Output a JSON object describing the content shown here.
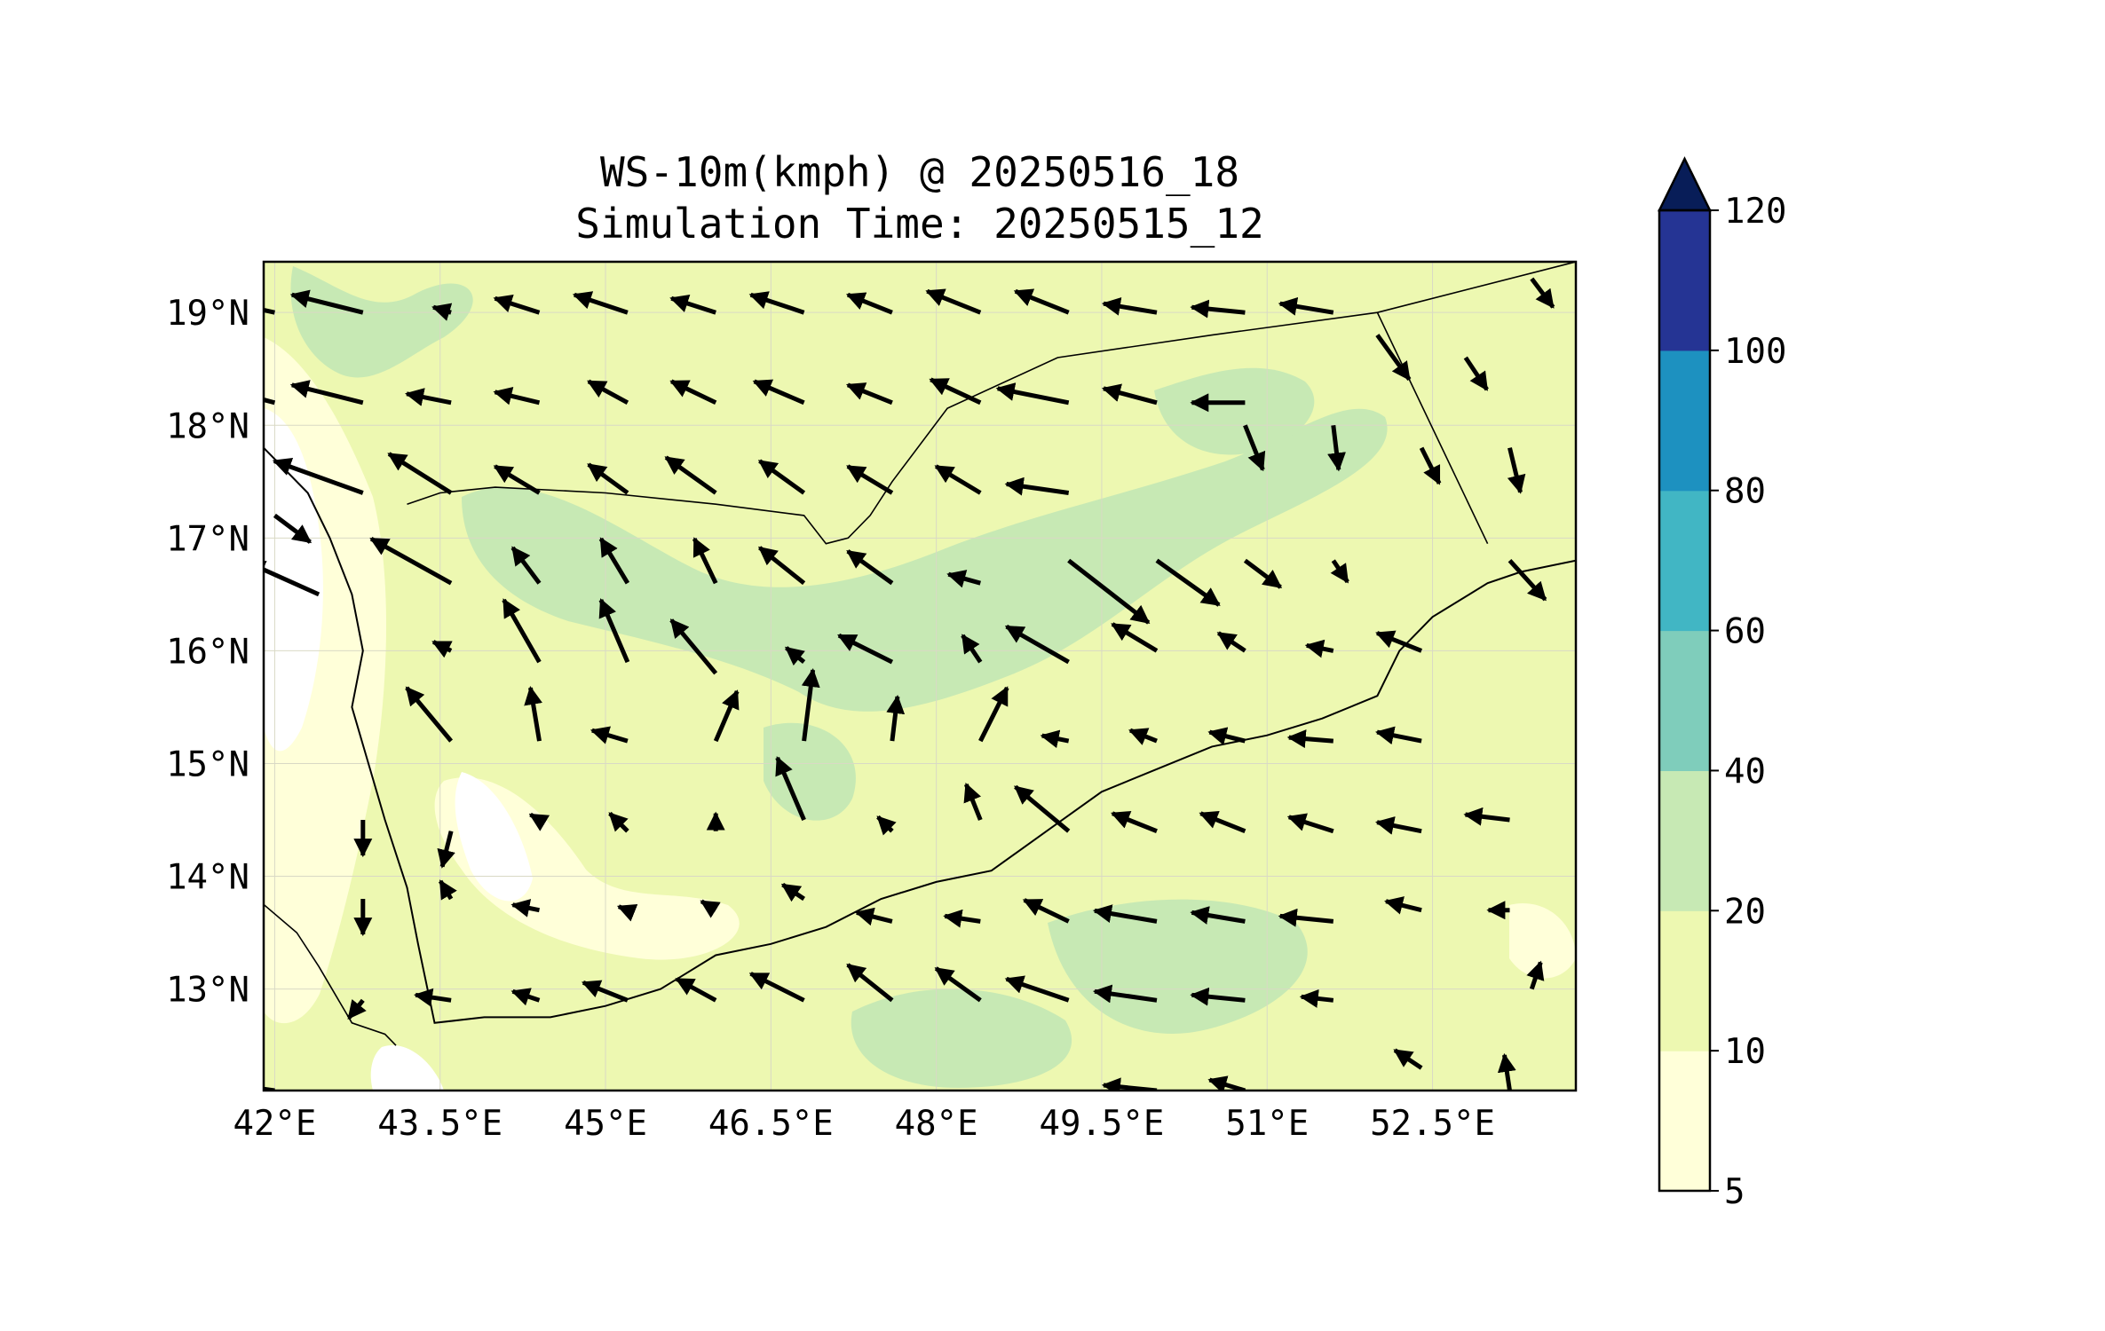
{
  "title": {
    "line1": "WS-10m(kmph) @ 20250516_18",
    "line2": "Simulation Time: 20250515_12"
  },
  "map": {
    "lon_range": [
      41.9,
      53.8
    ],
    "lat_range": [
      12.1,
      19.45
    ],
    "lon_ticks": [
      {
        "value": 42.0,
        "label": "42°E"
      },
      {
        "value": 43.5,
        "label": "43.5°E"
      },
      {
        "value": 45.0,
        "label": "45°E"
      },
      {
        "value": 46.5,
        "label": "46.5°E"
      },
      {
        "value": 48.0,
        "label": "48°E"
      },
      {
        "value": 49.5,
        "label": "49.5°E"
      },
      {
        "value": 51.0,
        "label": "51°E"
      },
      {
        "value": 52.5,
        "label": "52.5°E"
      }
    ],
    "lat_ticks": [
      {
        "value": 19,
        "label": "19°N"
      },
      {
        "value": 18,
        "label": "18°N"
      },
      {
        "value": 17,
        "label": "17°N"
      },
      {
        "value": 16,
        "label": "16°N"
      },
      {
        "value": 15,
        "label": "15°N"
      },
      {
        "value": 14,
        "label": "14°N"
      },
      {
        "value": 13,
        "label": "13°N"
      }
    ],
    "grid": true,
    "coastline": [
      [
        41.9,
        17.8
      ],
      [
        42.3,
        17.4
      ],
      [
        42.5,
        17.0
      ],
      [
        42.7,
        16.5
      ],
      [
        42.8,
        16.0
      ],
      [
        42.7,
        15.5
      ],
      [
        42.85,
        15.0
      ],
      [
        43.0,
        14.5
      ],
      [
        43.2,
        13.9
      ],
      [
        43.3,
        13.4
      ],
      [
        43.45,
        12.7
      ],
      [
        43.9,
        12.75
      ],
      [
        44.5,
        12.75
      ],
      [
        45.0,
        12.85
      ],
      [
        45.5,
        13.0
      ],
      [
        46.0,
        13.3
      ],
      [
        46.5,
        13.4
      ],
      [
        47.0,
        13.55
      ],
      [
        47.5,
        13.8
      ],
      [
        48.0,
        13.95
      ],
      [
        48.5,
        14.05
      ],
      [
        49.0,
        14.4
      ],
      [
        49.5,
        14.75
      ],
      [
        50.0,
        14.95
      ],
      [
        50.5,
        15.15
      ],
      [
        51.0,
        15.25
      ],
      [
        51.5,
        15.4
      ],
      [
        52.0,
        15.6
      ],
      [
        52.2,
        16.0
      ],
      [
        52.5,
        16.3
      ],
      [
        53.0,
        16.6
      ],
      [
        53.3,
        16.7
      ],
      [
        53.8,
        16.8
      ]
    ],
    "borders": [
      [
        [
          43.2,
          17.3
        ],
        [
          43.5,
          17.4
        ],
        [
          44.0,
          17.45
        ],
        [
          45.0,
          17.4
        ],
        [
          46.0,
          17.3
        ],
        [
          46.8,
          17.2
        ],
        [
          47.0,
          16.95
        ],
        [
          47.2,
          17.0
        ],
        [
          47.4,
          17.2
        ],
        [
          47.6,
          17.5
        ],
        [
          48.1,
          18.15
        ],
        [
          49.1,
          18.6
        ],
        [
          50.5,
          18.8
        ],
        [
          52.0,
          19.0
        ],
        [
          53.8,
          19.45
        ]
      ],
      [
        [
          52.0,
          19.0
        ],
        [
          53.0,
          16.95
        ]
      ],
      [
        [
          41.9,
          13.75
        ],
        [
          42.2,
          13.5
        ],
        [
          42.4,
          13.2
        ],
        [
          42.7,
          12.7
        ],
        [
          43.0,
          12.6
        ],
        [
          43.1,
          12.5
        ]
      ]
    ],
    "wind_vectors": [
      {
        "lon": 42.0,
        "lat": 19.0,
        "u": -4.5,
        "v": 1.0
      },
      {
        "lon": 42.8,
        "lat": 19.0,
        "u": -4.0,
        "v": 1.0
      },
      {
        "lon": 43.6,
        "lat": 19.0,
        "u": -1.0,
        "v": 0.3
      },
      {
        "lon": 44.4,
        "lat": 19.0,
        "u": -2.5,
        "v": 0.8
      },
      {
        "lon": 45.2,
        "lat": 19.0,
        "u": -3.0,
        "v": 1.0
      },
      {
        "lon": 46.0,
        "lat": 19.0,
        "u": -2.5,
        "v": 0.8
      },
      {
        "lon": 46.8,
        "lat": 19.0,
        "u": -3.0,
        "v": 1.0
      },
      {
        "lon": 47.6,
        "lat": 19.0,
        "u": -2.5,
        "v": 1.0
      },
      {
        "lon": 48.4,
        "lat": 19.0,
        "u": -3.0,
        "v": 1.2
      },
      {
        "lon": 49.2,
        "lat": 19.0,
        "u": -3.0,
        "v": 1.2
      },
      {
        "lon": 50.0,
        "lat": 19.0,
        "u": -3.0,
        "v": 0.5
      },
      {
        "lon": 50.8,
        "lat": 19.0,
        "u": -3.0,
        "v": 0.3
      },
      {
        "lon": 51.6,
        "lat": 19.0,
        "u": -3.0,
        "v": 0.5
      },
      {
        "lon": 53.4,
        "lat": 19.3,
        "u": 1.2,
        "v": -1.6
      },
      {
        "lon": 42.0,
        "lat": 18.2,
        "u": -4.5,
        "v": 1.2
      },
      {
        "lon": 42.8,
        "lat": 18.2,
        "u": -4.0,
        "v": 1.0
      },
      {
        "lon": 43.6,
        "lat": 18.2,
        "u": -2.5,
        "v": 0.5
      },
      {
        "lon": 44.4,
        "lat": 18.2,
        "u": -2.5,
        "v": 0.6
      },
      {
        "lon": 45.2,
        "lat": 18.2,
        "u": -2.2,
        "v": 1.2
      },
      {
        "lon": 46.0,
        "lat": 18.2,
        "u": -2.5,
        "v": 1.2
      },
      {
        "lon": 46.8,
        "lat": 18.2,
        "u": -2.8,
        "v": 1.2
      },
      {
        "lon": 47.6,
        "lat": 18.2,
        "u": -2.5,
        "v": 1.0
      },
      {
        "lon": 48.4,
        "lat": 18.2,
        "u": -2.8,
        "v": 1.3
      },
      {
        "lon": 49.2,
        "lat": 18.2,
        "u": -4.0,
        "v": 0.8
      },
      {
        "lon": 50.0,
        "lat": 18.2,
        "u": -3.0,
        "v": 0.8
      },
      {
        "lon": 50.8,
        "lat": 18.2,
        "u": -3.0,
        "v": 0.0
      },
      {
        "lon": 52.0,
        "lat": 18.8,
        "u": 1.8,
        "v": -2.5
      },
      {
        "lon": 52.8,
        "lat": 18.6,
        "u": 1.2,
        "v": -1.8
      },
      {
        "lon": 42.0,
        "lat": 17.2,
        "u": 2.0,
        "v": -1.5
      },
      {
        "lon": 42.8,
        "lat": 17.4,
        "u": -5.0,
        "v": 1.8
      },
      {
        "lon": 43.6,
        "lat": 17.4,
        "u": -3.5,
        "v": 2.2
      },
      {
        "lon": 44.4,
        "lat": 17.4,
        "u": -2.5,
        "v": 1.5
      },
      {
        "lon": 45.2,
        "lat": 17.4,
        "u": -2.2,
        "v": 1.6
      },
      {
        "lon": 46.0,
        "lat": 17.4,
        "u": -2.8,
        "v": 2.0
      },
      {
        "lon": 46.8,
        "lat": 17.4,
        "u": -2.5,
        "v": 1.8
      },
      {
        "lon": 47.6,
        "lat": 17.4,
        "u": -2.5,
        "v": 1.5
      },
      {
        "lon": 48.4,
        "lat": 17.4,
        "u": -2.5,
        "v": 1.5
      },
      {
        "lon": 49.2,
        "lat": 17.4,
        "u": -3.5,
        "v": 0.5
      },
      {
        "lon": 49.2,
        "lat": 16.8,
        "u": 4.5,
        "v": -3.5
      },
      {
        "lon": 50.0,
        "lat": 16.8,
        "u": 3.5,
        "v": -2.5
      },
      {
        "lon": 50.8,
        "lat": 18.0,
        "u": 1.0,
        "v": -2.5
      },
      {
        "lon": 51.6,
        "lat": 18.0,
        "u": 0.3,
        "v": -2.5
      },
      {
        "lon": 52.4,
        "lat": 17.8,
        "u": 1.0,
        "v": -2.0
      },
      {
        "lon": 53.2,
        "lat": 17.8,
        "u": 0.6,
        "v": -2.5
      },
      {
        "lon": 42.4,
        "lat": 16.5,
        "u": -4.0,
        "v": 1.8
      },
      {
        "lon": 43.6,
        "lat": 16.6,
        "u": -4.5,
        "v": 2.5
      },
      {
        "lon": 44.4,
        "lat": 16.6,
        "u": -1.5,
        "v": 2.0
      },
      {
        "lon": 45.2,
        "lat": 16.6,
        "u": -1.5,
        "v": 2.5
      },
      {
        "lon": 46.0,
        "lat": 16.6,
        "u": -1.2,
        "v": 2.5
      },
      {
        "lon": 46.8,
        "lat": 16.6,
        "u": -2.5,
        "v": 2.0
      },
      {
        "lon": 47.6,
        "lat": 16.6,
        "u": -2.5,
        "v": 1.8
      },
      {
        "lon": 48.4,
        "lat": 16.6,
        "u": -1.8,
        "v": 0.5
      },
      {
        "lon": 50.8,
        "lat": 16.8,
        "u": 2.0,
        "v": -1.5
      },
      {
        "lon": 51.6,
        "lat": 16.8,
        "u": 0.8,
        "v": -1.2
      },
      {
        "lon": 53.2,
        "lat": 16.8,
        "u": 2.0,
        "v": -2.2
      },
      {
        "lon": 43.6,
        "lat": 16.0,
        "u": -1.0,
        "v": 0.5
      },
      {
        "lon": 44.4,
        "lat": 15.9,
        "u": -2.0,
        "v": 3.5
      },
      {
        "lon": 45.2,
        "lat": 15.9,
        "u": -1.5,
        "v": 3.5
      },
      {
        "lon": 46.0,
        "lat": 15.8,
        "u": -2.5,
        "v": 3.0
      },
      {
        "lon": 46.8,
        "lat": 15.9,
        "u": -1.0,
        "v": 0.8
      },
      {
        "lon": 47.6,
        "lat": 15.9,
        "u": -3.0,
        "v": 1.5
      },
      {
        "lon": 48.4,
        "lat": 15.9,
        "u": -1.0,
        "v": 1.5
      },
      {
        "lon": 49.2,
        "lat": 15.9,
        "u": -3.5,
        "v": 2.0
      },
      {
        "lon": 50.0,
        "lat": 16.0,
        "u": -2.5,
        "v": 1.5
      },
      {
        "lon": 50.8,
        "lat": 16.0,
        "u": -1.5,
        "v": 1.0
      },
      {
        "lon": 51.6,
        "lat": 16.0,
        "u": -1.5,
        "v": 0.3
      },
      {
        "lon": 52.4,
        "lat": 16.0,
        "u": -2.5,
        "v": 1.0
      },
      {
        "lon": 43.6,
        "lat": 15.2,
        "u": -2.5,
        "v": 3.0
      },
      {
        "lon": 44.4,
        "lat": 15.2,
        "u": -0.5,
        "v": 3.0
      },
      {
        "lon": 45.2,
        "lat": 15.2,
        "u": -2.0,
        "v": 0.6
      },
      {
        "lon": 46.0,
        "lat": 15.2,
        "u": 1.2,
        "v": 2.8
      },
      {
        "lon": 46.8,
        "lat": 15.2,
        "u": 0.5,
        "v": 4.0
      },
      {
        "lon": 47.6,
        "lat": 15.2,
        "u": 0.3,
        "v": 2.5
      },
      {
        "lon": 48.4,
        "lat": 15.2,
        "u": 1.5,
        "v": 3.0
      },
      {
        "lon": 49.2,
        "lat": 15.2,
        "u": -1.5,
        "v": 0.3
      },
      {
        "lon": 50.0,
        "lat": 15.2,
        "u": -1.5,
        "v": 0.6
      },
      {
        "lon": 50.8,
        "lat": 15.2,
        "u": -2.0,
        "v": 0.5
      },
      {
        "lon": 51.6,
        "lat": 15.2,
        "u": -2.5,
        "v": 0.2
      },
      {
        "lon": 52.4,
        "lat": 15.2,
        "u": -2.5,
        "v": 0.5
      },
      {
        "lon": 42.8,
        "lat": 14.5,
        "u": 0.0,
        "v": -2.0
      },
      {
        "lon": 43.6,
        "lat": 14.4,
        "u": -0.5,
        "v": -2.0
      },
      {
        "lon": 44.4,
        "lat": 14.5,
        "u": -0.5,
        "v": 0.3
      },
      {
        "lon": 45.2,
        "lat": 14.4,
        "u": -1.0,
        "v": 1.0
      },
      {
        "lon": 46.0,
        "lat": 14.4,
        "u": 0.0,
        "v": 1.0
      },
      {
        "lon": 46.8,
        "lat": 14.5,
        "u": -1.5,
        "v": 3.5
      },
      {
        "lon": 47.6,
        "lat": 14.4,
        "u": -0.8,
        "v": 0.8
      },
      {
        "lon": 48.4,
        "lat": 14.5,
        "u": -0.8,
        "v": 2.0
      },
      {
        "lon": 49.2,
        "lat": 14.4,
        "u": -3.0,
        "v": 2.5
      },
      {
        "lon": 50.0,
        "lat": 14.4,
        "u": -2.5,
        "v": 1.0
      },
      {
        "lon": 50.8,
        "lat": 14.4,
        "u": -2.5,
        "v": 1.0
      },
      {
        "lon": 51.6,
        "lat": 14.4,
        "u": -2.5,
        "v": 0.8
      },
      {
        "lon": 52.4,
        "lat": 14.4,
        "u": -2.5,
        "v": 0.5
      },
      {
        "lon": 53.2,
        "lat": 14.5,
        "u": -2.5,
        "v": 0.3
      },
      {
        "lon": 42.8,
        "lat": 13.8,
        "u": 0.0,
        "v": -2.0
      },
      {
        "lon": 43.6,
        "lat": 13.8,
        "u": -0.6,
        "v": 1.0
      },
      {
        "lon": 44.4,
        "lat": 13.7,
        "u": -1.5,
        "v": 0.3
      },
      {
        "lon": 45.2,
        "lat": 13.7,
        "u": -0.5,
        "v": 0.2
      },
      {
        "lon": 46.0,
        "lat": 13.7,
        "u": -0.8,
        "v": 0.5
      },
      {
        "lon": 46.8,
        "lat": 13.8,
        "u": -1.2,
        "v": 0.8
      },
      {
        "lon": 47.6,
        "lat": 13.6,
        "u": -2.0,
        "v": 0.5
      },
      {
        "lon": 48.4,
        "lat": 13.6,
        "u": -2.0,
        "v": 0.3
      },
      {
        "lon": 49.2,
        "lat": 13.6,
        "u": -2.5,
        "v": 1.2
      },
      {
        "lon": 50.0,
        "lat": 13.6,
        "u": -3.5,
        "v": 0.6
      },
      {
        "lon": 50.8,
        "lat": 13.6,
        "u": -3.0,
        "v": 0.5
      },
      {
        "lon": 51.6,
        "lat": 13.6,
        "u": -3.0,
        "v": 0.3
      },
      {
        "lon": 52.4,
        "lat": 13.7,
        "u": -2.0,
        "v": 0.5
      },
      {
        "lon": 53.2,
        "lat": 13.7,
        "u": -1.2,
        "v": 0.0
      },
      {
        "lon": 42.8,
        "lat": 12.9,
        "u": -0.8,
        "v": -1.0
      },
      {
        "lon": 43.6,
        "lat": 12.9,
        "u": -2.0,
        "v": 0.3
      },
      {
        "lon": 44.4,
        "lat": 12.9,
        "u": -1.5,
        "v": 0.5
      },
      {
        "lon": 45.2,
        "lat": 12.9,
        "u": -2.5,
        "v": 1.0
      },
      {
        "lon": 46.0,
        "lat": 12.9,
        "u": -2.2,
        "v": 1.2
      },
      {
        "lon": 46.8,
        "lat": 12.9,
        "u": -3.0,
        "v": 1.5
      },
      {
        "lon": 47.6,
        "lat": 12.9,
        "u": -2.5,
        "v": 2.0
      },
      {
        "lon": 48.4,
        "lat": 12.9,
        "u": -2.5,
        "v": 1.8
      },
      {
        "lon": 49.2,
        "lat": 12.9,
        "u": -3.5,
        "v": 1.2
      },
      {
        "lon": 50.0,
        "lat": 12.9,
        "u": -3.5,
        "v": 0.5
      },
      {
        "lon": 50.8,
        "lat": 12.9,
        "u": -3.0,
        "v": 0.3
      },
      {
        "lon": 51.6,
        "lat": 12.9,
        "u": -1.8,
        "v": 0.2
      },
      {
        "lon": 53.4,
        "lat": 13.0,
        "u": 0.5,
        "v": 1.5
      },
      {
        "lon": 42.0,
        "lat": 12.1,
        "u": -3.5,
        "v": 0.5
      },
      {
        "lon": 50.0,
        "lat": 12.1,
        "u": -3.0,
        "v": 0.3
      },
      {
        "lon": 50.8,
        "lat": 12.1,
        "u": -2.0,
        "v": 0.6
      },
      {
        "lon": 52.4,
        "lat": 12.3,
        "u": -1.5,
        "v": 1.0
      },
      {
        "lon": 53.2,
        "lat": 12.1,
        "u": -0.3,
        "v": 2.0
      }
    ]
  },
  "colorbar": {
    "levels": [
      "5",
      "10",
      "20",
      "40",
      "60",
      "80",
      "100",
      "120"
    ],
    "colors": [
      "#ffffd9",
      "#edf8b1",
      "#c7e9b4",
      "#7fcdbb",
      "#41b6c4",
      "#1d91c0",
      "#253494",
      "#081d58"
    ],
    "extend": "max"
  }
}
